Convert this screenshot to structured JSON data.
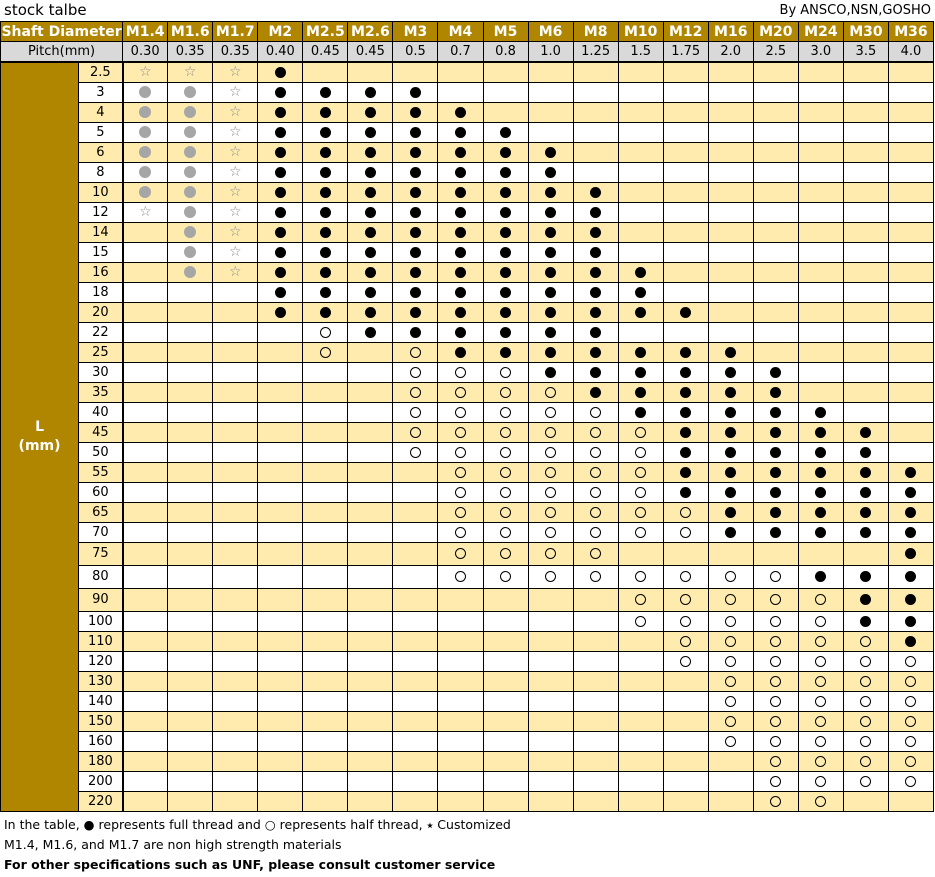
{
  "title": "stock talbe",
  "source": "By ANSCO,NSN,GOSHO",
  "header": {
    "shaft_label": "Shaft Diameter",
    "pitch_label": "Pitch(mm)",
    "l_label": "L",
    "l_unit": "(mm)"
  },
  "columns": [
    {
      "name": "M1.4",
      "pitch": "0.30"
    },
    {
      "name": "M1.6",
      "pitch": "0.35"
    },
    {
      "name": "M1.7",
      "pitch": "0.35"
    },
    {
      "name": "M2",
      "pitch": "0.40"
    },
    {
      "name": "M2.5",
      "pitch": "0.45"
    },
    {
      "name": "M2.6",
      "pitch": "0.45"
    },
    {
      "name": "M3",
      "pitch": "0.5"
    },
    {
      "name": "M4",
      "pitch": "0.7"
    },
    {
      "name": "M5",
      "pitch": "0.8"
    },
    {
      "name": "M6",
      "pitch": "1.0"
    },
    {
      "name": "M8",
      "pitch": "1.25"
    },
    {
      "name": "M10",
      "pitch": "1.5"
    },
    {
      "name": "M12",
      "pitch": "1.75"
    },
    {
      "name": "M16",
      "pitch": "2.0"
    },
    {
      "name": "M20",
      "pitch": "2.5"
    },
    {
      "name": "M24",
      "pitch": "3.0"
    },
    {
      "name": "M30",
      "pitch": "3.5"
    },
    {
      "name": "M36",
      "pitch": "4.0"
    }
  ],
  "symbol_legend": {
    "F": "full-thread-dot",
    "H": "half-thread-circle",
    "S": "customized-star",
    "G": "gray-dot",
    ".": "empty"
  },
  "colors": {
    "header_gold": "#B08500",
    "pitch_gray": "#D9D9D9",
    "row_yellow": "#FFEBAD",
    "gray_dot": "#A6A6A6"
  },
  "rows": [
    {
      "L": "2.5",
      "cells": "SSSF.............."
    },
    {
      "L": "3",
      "cells": "GGSFFFF..........."
    },
    {
      "L": "4",
      "cells": "GGSFFFFF.........."
    },
    {
      "L": "5",
      "cells": "GGSFFFFFF........."
    },
    {
      "L": "6",
      "cells": "GGSFFFFFFF........"
    },
    {
      "L": "8",
      "cells": "GGSFFFFFFF........"
    },
    {
      "L": "10",
      "cells": "GGSFFFFFFFF......."
    },
    {
      "L": "12",
      "cells": "SGSFFFFFFFF......."
    },
    {
      "L": "14",
      "cells": ".GSFFFFFFFF......."
    },
    {
      "L": "15",
      "cells": ".GSFFFFFFFF......."
    },
    {
      "L": "16",
      "cells": ".GSFFFFFFFFF......"
    },
    {
      "L": "18",
      "cells": "...FFFFFFFFF......"
    },
    {
      "L": "20",
      "cells": "...FFFFFFFFFF....."
    },
    {
      "L": "22",
      "cells": "....HFFFFFF......."
    },
    {
      "L": "25",
      "cells": "....H.HFFFFFFF...."
    },
    {
      "L": "30",
      "cells": "......HHHFFFFFF..."
    },
    {
      "L": "35",
      "cells": "......HHHHFFFFF..."
    },
    {
      "L": "40",
      "cells": "......HHHHHFFFFF.."
    },
    {
      "L": "45",
      "cells": "......HHHHHHFFFFF."
    },
    {
      "L": "50",
      "cells": "......HHHHHHFFFFF."
    },
    {
      "L": "55",
      "cells": ".......HHHHHFFFFFF"
    },
    {
      "L": "60",
      "cells": ".......HHHHHFFFFFF"
    },
    {
      "L": "65",
      "cells": ".......HHHHHHFFFFF"
    },
    {
      "L": "70",
      "cells": ".......HHHHHHFFFFF"
    },
    {
      "L": "75",
      "cells": ".......HHHH......F"
    },
    {
      "L": "80",
      "cells": ".......HHHHHHHHFFF"
    },
    {
      "L": "90",
      "cells": "...........HHHHHFF"
    },
    {
      "L": "100",
      "cells": "...........HHHHHFF"
    },
    {
      "L": "110",
      "cells": "............HHHHHF"
    },
    {
      "L": "120",
      "cells": "............HHHHHH"
    },
    {
      "L": "130",
      "cells": ".............HHHHH"
    },
    {
      "L": "140",
      "cells": ".............HHHHH"
    },
    {
      "L": "150",
      "cells": ".............HHHHH"
    },
    {
      "L": "160",
      "cells": ".............HHHHH"
    },
    {
      "L": "180",
      "cells": "..............HHHH"
    },
    {
      "L": "200",
      "cells": "..............HHHH"
    },
    {
      "L": "220",
      "cells": "..............HH.."
    }
  ],
  "notes": {
    "line1": "In the table, ● represents full thread and ○ represents half thread, ⭑ Customized",
    "line2": "M1.4, M1.6, and M1.7 are non high strength materials",
    "line3": "For other specifications such as UNF, please consult customer service"
  }
}
